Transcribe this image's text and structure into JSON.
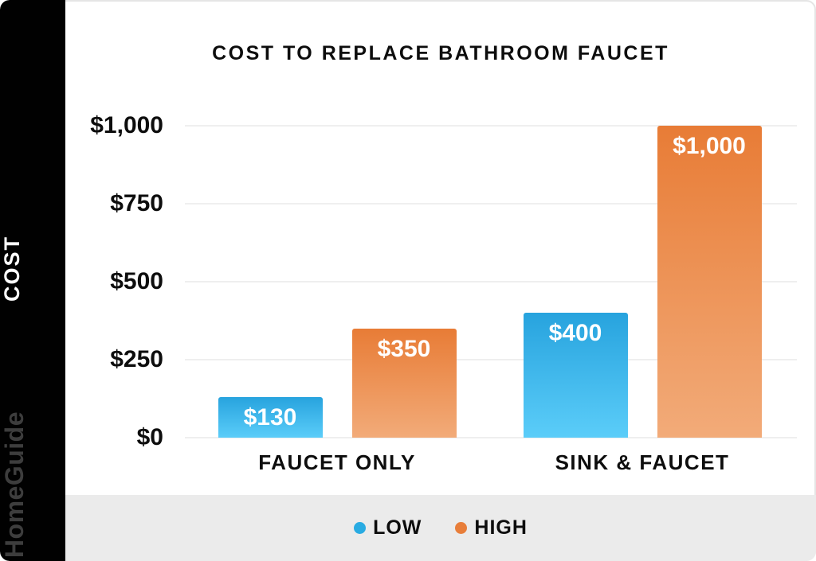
{
  "sidebar": {
    "axis_label": "COST",
    "brand": "HomeGuide"
  },
  "title": "COST TO REPLACE BATHROOM FAUCET",
  "chart_data": {
    "type": "bar",
    "title": "COST TO REPLACE BATHROOM FAUCET",
    "ylabel": "COST",
    "xlabel": "",
    "ylim": [
      0,
      1000
    ],
    "grid": true,
    "legend_position": "bottom",
    "categories": [
      "FAUCET ONLY",
      "SINK & FAUCET"
    ],
    "series": [
      {
        "name": "LOW",
        "values": [
          130,
          400
        ],
        "labels": [
          "$130",
          "$400"
        ],
        "color_top": "#27a3de",
        "color_bottom": "#5bcdf9",
        "legend_color": "#29abe2"
      },
      {
        "name": "HIGH",
        "values": [
          350,
          1000
        ],
        "labels": [
          "$350",
          "$1,000"
        ],
        "color_top": "#e87c36",
        "color_bottom": "#f2ab79",
        "legend_color": "#e87e3a"
      }
    ],
    "yticks": [
      {
        "value": 0,
        "label": "$0"
      },
      {
        "value": 250,
        "label": "$250"
      },
      {
        "value": 500,
        "label": "$500"
      },
      {
        "value": 750,
        "label": "$750"
      },
      {
        "value": 1000,
        "label": "$1,000"
      }
    ]
  },
  "colors": {
    "sidebar_bg": "#010101",
    "footer_bg": "#ebebeb",
    "gridline": "#efefef",
    "text": "#0d0d0d",
    "bar_label": "#ffffff",
    "brand_text": "#3d3d3d"
  }
}
